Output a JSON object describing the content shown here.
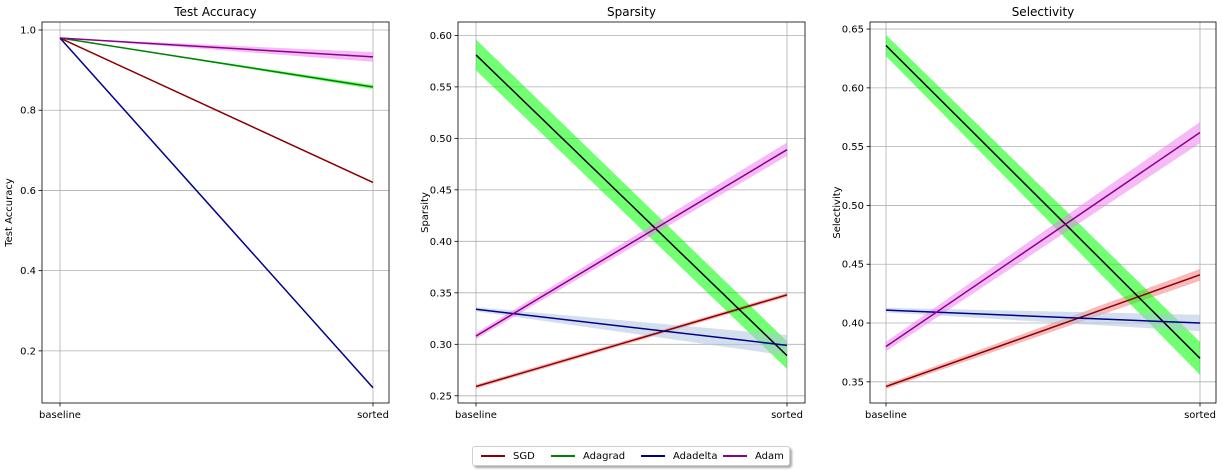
{
  "chart_data": [
    {
      "type": "line",
      "title": "Test Accuracy",
      "xlabel": "",
      "ylabel": "Test Accuracy",
      "categories": [
        "baseline",
        "sorted"
      ],
      "ylim": [
        0.07,
        1.02
      ],
      "yticks": [
        "0.2",
        "0.4",
        "0.6",
        "0.8",
        "1.0"
      ],
      "grid": true,
      "series": [
        {
          "name": "SGD",
          "color": "#8b0000",
          "band_color": "#f08080",
          "values": [
            0.98,
            0.62
          ],
          "lower": [
            0.98,
            0.618
          ],
          "upper": [
            0.98,
            0.622
          ]
        },
        {
          "name": "Adagrad",
          "color": "#008000",
          "band_color": "#00ff00",
          "values": [
            0.98,
            0.858
          ],
          "lower": [
            0.98,
            0.853
          ],
          "upper": [
            0.98,
            0.863
          ]
        },
        {
          "name": "Adadelta",
          "color": "#00008b",
          "band_color": "#b0c4de",
          "values": [
            0.98,
            0.108
          ],
          "lower": [
            0.98,
            0.106
          ],
          "upper": [
            0.98,
            0.11
          ]
        },
        {
          "name": "Adam",
          "color": "#8b008b",
          "band_color": "#ee82ee",
          "values": [
            0.98,
            0.933
          ],
          "lower": [
            0.98,
            0.921
          ],
          "upper": [
            0.98,
            0.945
          ]
        }
      ]
    },
    {
      "type": "line",
      "title": "Sparsity",
      "xlabel": "",
      "ylabel": "Sparsity",
      "categories": [
        "baseline",
        "sorted"
      ],
      "ylim": [
        0.243,
        0.613
      ],
      "yticks": [
        "0.25",
        "0.30",
        "0.35",
        "0.40",
        "0.45",
        "0.50",
        "0.55",
        "0.60"
      ],
      "grid": true,
      "series": [
        {
          "name": "SGD",
          "color": "#8b0000",
          "band_color": "#f08080",
          "values": [
            0.259,
            0.348
          ],
          "lower": [
            0.257,
            0.346
          ],
          "upper": [
            0.261,
            0.35
          ]
        },
        {
          "name": "Adagrad",
          "color": "#000000",
          "band_color": "#00ff00",
          "values": [
            0.581,
            0.289
          ],
          "lower": [
            0.566,
            0.276
          ],
          "upper": [
            0.596,
            0.303
          ]
        },
        {
          "name": "Adadelta",
          "color": "#00008b",
          "band_color": "#b0c4de",
          "values": [
            0.334,
            0.299
          ],
          "lower": [
            0.332,
            0.289
          ],
          "upper": [
            0.336,
            0.309
          ]
        },
        {
          "name": "Adam",
          "color": "#8b008b",
          "band_color": "#ee82ee",
          "values": [
            0.308,
            0.489
          ],
          "lower": [
            0.305,
            0.483
          ],
          "upper": [
            0.311,
            0.496
          ]
        }
      ]
    },
    {
      "type": "line",
      "title": "Selectivity",
      "xlabel": "",
      "ylabel": "Selectivity",
      "categories": [
        "baseline",
        "sorted"
      ],
      "ylim": [
        0.332,
        0.656
      ],
      "yticks": [
        "0.35",
        "0.40",
        "0.45",
        "0.50",
        "0.55",
        "0.60",
        "0.65"
      ],
      "grid": true,
      "series": [
        {
          "name": "SGD",
          "color": "#8b0000",
          "band_color": "#f08080",
          "values": [
            0.346,
            0.441
          ],
          "lower": [
            0.344,
            0.436
          ],
          "upper": [
            0.348,
            0.446
          ]
        },
        {
          "name": "Adagrad",
          "color": "#000000",
          "band_color": "#00ff00",
          "values": [
            0.636,
            0.37
          ],
          "lower": [
            0.627,
            0.356
          ],
          "upper": [
            0.645,
            0.384
          ]
        },
        {
          "name": "Adadelta",
          "color": "#00008b",
          "band_color": "#b0c4de",
          "values": [
            0.411,
            0.4
          ],
          "lower": [
            0.409,
            0.393
          ],
          "upper": [
            0.413,
            0.407
          ]
        },
        {
          "name": "Adam",
          "color": "#8b008b",
          "band_color": "#ee82ee",
          "values": [
            0.38,
            0.562
          ],
          "lower": [
            0.376,
            0.553
          ],
          "upper": [
            0.384,
            0.571
          ]
        }
      ]
    }
  ],
  "legend": {
    "placement": "bottom-center",
    "items": [
      {
        "label": "SGD",
        "color": "#8b0000"
      },
      {
        "label": "Adagrad",
        "color": "#008000"
      },
      {
        "label": "Adadelta",
        "color": "#00008b"
      },
      {
        "label": "Adam",
        "color": "#8b008b"
      }
    ]
  }
}
